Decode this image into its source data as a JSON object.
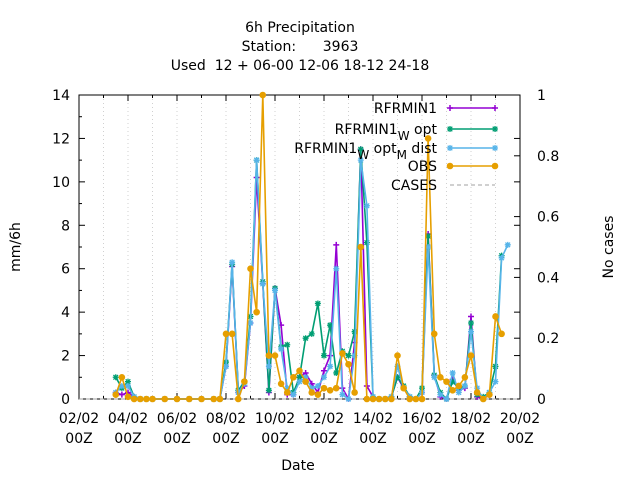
{
  "chart_data": {
    "type": "line",
    "title_lines": [
      "6h Precipitation",
      "Station:      3963",
      "Used  12 + 06-00 12-06 18-12 24-18"
    ],
    "xlabel": "Date",
    "ylabel": "mm/6h",
    "y2label": "No cases",
    "x_range": [
      "2001-02-02T00:00",
      "2001-02-20T00:00"
    ],
    "ylim": [
      0,
      14
    ],
    "y2lim": [
      0,
      1
    ],
    "x_ticks": [
      {
        "l1": "02/02",
        "l2": "00Z"
      },
      {
        "l1": "04/02",
        "l2": "00Z"
      },
      {
        "l1": "06/02",
        "l2": "00Z"
      },
      {
        "l1": "08/02",
        "l2": "00Z"
      },
      {
        "l1": "10/02",
        "l2": "00Z"
      },
      {
        "l1": "12/02",
        "l2": "00Z"
      },
      {
        "l1": "14/02",
        "l2": "00Z"
      },
      {
        "l1": "16/02",
        "l2": "00Z"
      },
      {
        "l1": "18/02",
        "l2": "00Z"
      },
      {
        "l1": "20/02",
        "l2": "00Z"
      }
    ],
    "y_ticks": [
      "0",
      "2",
      "4",
      "6",
      "8",
      "10",
      "12",
      "14"
    ],
    "y2_ticks": [
      "0",
      "0.2",
      "0.4",
      "0.6",
      "0.8",
      "1"
    ],
    "legend_position": "top-right",
    "legend": [
      {
        "base": "RFRMIN1",
        "sub": "",
        "after": "",
        "sub2": "",
        "after2": ""
      },
      {
        "base": "RFRMIN1",
        "sub": "W",
        "after": " opt",
        "sub2": "",
        "after2": ""
      },
      {
        "base": "RFRMIN1",
        "sub": "W",
        "after": " opt",
        "sub2": "M",
        "after2": " dist"
      },
      {
        "base": "OBS",
        "sub": "",
        "after": "",
        "sub2": "",
        "after2": ""
      },
      {
        "base": "CASES",
        "sub": "",
        "after": "",
        "sub2": "",
        "after2": ""
      }
    ],
    "series": [
      {
        "color": "#9400d3",
        "marker": "plus",
        "x": [
          "2001-02-03T12:00",
          "2001-02-03T18:00",
          "2001-02-04T00:00",
          "2001-02-04T06:00",
          "2001-02-04T12:00",
          "2001-02-04T18:00",
          "2001-02-05T00:00",
          "2001-02-05T12:00",
          "2001-02-06T00:00",
          "2001-02-06T12:00",
          "2001-02-07T00:00",
          "2001-02-07T12:00",
          "2001-02-07T18:00",
          "2001-02-08T00:00",
          "2001-02-08T06:00",
          "2001-02-08T12:00",
          "2001-02-08T18:00",
          "2001-02-09T00:00",
          "2001-02-09T06:00",
          "2001-02-09T12:00",
          "2001-02-09T18:00",
          "2001-02-10T00:00",
          "2001-02-10T06:00",
          "2001-02-10T12:00",
          "2001-02-10T18:00",
          "2001-02-11T00:00",
          "2001-02-11T06:00",
          "2001-02-11T12:00",
          "2001-02-11T18:00",
          "2001-02-12T00:00",
          "2001-02-12T06:00",
          "2001-02-12T12:00",
          "2001-02-12T18:00",
          "2001-02-13T00:00",
          "2001-02-13T06:00",
          "2001-02-13T12:00",
          "2001-02-13T18:00",
          "2001-02-14T00:00",
          "2001-02-14T06:00",
          "2001-02-14T12:00",
          "2001-02-14T18:00",
          "2001-02-15T00:00",
          "2001-02-15T06:00",
          "2001-02-15T12:00",
          "2001-02-15T18:00",
          "2001-02-16T00:00",
          "2001-02-16T06:00",
          "2001-02-16T12:00",
          "2001-02-16T18:00",
          "2001-02-17T00:00",
          "2001-02-17T06:00",
          "2001-02-17T12:00",
          "2001-02-17T18:00",
          "2001-02-18T00:00",
          "2001-02-18T06:00",
          "2001-02-18T12:00",
          "2001-02-18T18:00"
        ],
        "y": [
          0.3,
          0.2,
          0.3,
          0.1,
          0,
          0,
          0,
          0,
          0,
          0,
          0,
          0,
          0,
          1.5,
          6.1,
          0.3,
          0.6,
          3.5,
          10.2,
          5.3,
          0.3,
          5.1,
          3.4,
          0.2,
          0.2,
          1.0,
          1.2,
          0.7,
          0.3,
          1.3,
          2.0,
          7.1,
          0.5,
          0,
          2.6,
          11.5,
          0.6,
          0.1,
          0,
          0,
          0.1,
          1.0,
          0.5,
          0.1,
          0,
          0.3,
          7.6,
          1.1,
          0.1,
          0,
          0.9,
          0.4,
          0.5,
          3.8,
          0.1,
          0,
          0.2
        ]
      },
      {
        "color": "#009e73",
        "marker": "star",
        "x": [
          "2001-02-03T12:00",
          "2001-02-03T18:00",
          "2001-02-04T00:00",
          "2001-02-04T06:00",
          "2001-02-04T12:00",
          "2001-02-04T18:00",
          "2001-02-05T00:00",
          "2001-02-05T12:00",
          "2001-02-06T00:00",
          "2001-02-06T12:00",
          "2001-02-07T00:00",
          "2001-02-07T12:00",
          "2001-02-07T18:00",
          "2001-02-08T00:00",
          "2001-02-08T06:00",
          "2001-02-08T12:00",
          "2001-02-08T18:00",
          "2001-02-09T00:00",
          "2001-02-09T06:00",
          "2001-02-09T12:00",
          "2001-02-09T18:00",
          "2001-02-10T00:00",
          "2001-02-10T06:00",
          "2001-02-10T12:00",
          "2001-02-10T18:00",
          "2001-02-11T00:00",
          "2001-02-11T06:00",
          "2001-02-11T12:00",
          "2001-02-11T18:00",
          "2001-02-12T00:00",
          "2001-02-12T06:00",
          "2001-02-12T12:00",
          "2001-02-12T18:00",
          "2001-02-13T00:00",
          "2001-02-13T06:00",
          "2001-02-13T12:00",
          "2001-02-13T18:00",
          "2001-02-14T00:00",
          "2001-02-14T06:00",
          "2001-02-14T12:00",
          "2001-02-14T18:00",
          "2001-02-15T00:00",
          "2001-02-15T06:00",
          "2001-02-15T12:00",
          "2001-02-15T18:00",
          "2001-02-16T00:00",
          "2001-02-16T06:00",
          "2001-02-16T12:00",
          "2001-02-16T18:00",
          "2001-02-17T00:00",
          "2001-02-17T06:00",
          "2001-02-17T12:00",
          "2001-02-17T18:00",
          "2001-02-18T00:00",
          "2001-02-18T06:00",
          "2001-02-18T12:00",
          "2001-02-18T18:00",
          "2001-02-19T00:00",
          "2001-02-19T06:00"
        ],
        "y": [
          1.0,
          0.5,
          0.8,
          0.1,
          0,
          0,
          0,
          0,
          0,
          0,
          0,
          0,
          0,
          1.7,
          6.2,
          0.4,
          0.8,
          3.8,
          11.0,
          5.4,
          0.4,
          5.1,
          2.4,
          2.5,
          0.3,
          1.0,
          2.8,
          3.0,
          4.4,
          2.0,
          3.4,
          1.2,
          2.2,
          2.0,
          3.1,
          11.5,
          7.2,
          0.1,
          0,
          0,
          0.1,
          1.0,
          0.6,
          0.1,
          0,
          0.5,
          7.5,
          1.1,
          0.3,
          0,
          0.8,
          0.5,
          0.6,
          3.5,
          0.2,
          0.1,
          0.3,
          1.5,
          6.6
        ]
      },
      {
        "color": "#56b4e9",
        "marker": "star",
        "x": [
          "2001-02-03T12:00",
          "2001-02-03T18:00",
          "2001-02-04T00:00",
          "2001-02-04T06:00",
          "2001-02-04T12:00",
          "2001-02-04T18:00",
          "2001-02-05T00:00",
          "2001-02-05T12:00",
          "2001-02-06T00:00",
          "2001-02-06T12:00",
          "2001-02-07T00:00",
          "2001-02-07T12:00",
          "2001-02-07T18:00",
          "2001-02-08T00:00",
          "2001-02-08T06:00",
          "2001-02-08T12:00",
          "2001-02-08T18:00",
          "2001-02-09T00:00",
          "2001-02-09T06:00",
          "2001-02-09T12:00",
          "2001-02-09T18:00",
          "2001-02-10T00:00",
          "2001-02-10T06:00",
          "2001-02-10T12:00",
          "2001-02-10T18:00",
          "2001-02-11T00:00",
          "2001-02-11T06:00",
          "2001-02-11T12:00",
          "2001-02-11T18:00",
          "2001-02-12T00:00",
          "2001-02-12T06:00",
          "2001-02-12T12:00",
          "2001-02-12T18:00",
          "2001-02-13T00:00",
          "2001-02-13T06:00",
          "2001-02-13T12:00",
          "2001-02-13T18:00",
          "2001-02-14T00:00",
          "2001-02-14T06:00",
          "2001-02-14T12:00",
          "2001-02-14T18:00",
          "2001-02-15T00:00",
          "2001-02-15T06:00",
          "2001-02-15T12:00",
          "2001-02-15T18:00",
          "2001-02-16T00:00",
          "2001-02-16T06:00",
          "2001-02-16T12:00",
          "2001-02-16T18:00",
          "2001-02-17T00:00",
          "2001-02-17T06:00",
          "2001-02-17T12:00",
          "2001-02-17T18:00",
          "2001-02-18T00:00",
          "2001-02-18T06:00",
          "2001-02-18T12:00",
          "2001-02-18T18:00",
          "2001-02-19T00:00",
          "2001-02-19T06:00",
          "2001-02-19T12:00"
        ],
        "y": [
          0.3,
          0.6,
          0.6,
          0.1,
          0,
          0,
          0,
          0,
          0,
          0,
          0,
          0,
          0,
          1.5,
          6.3,
          0.3,
          0.7,
          3.5,
          11.0,
          5.3,
          1.5,
          5.0,
          2.3,
          0.5,
          0.2,
          0.8,
          1.0,
          0.5,
          0.6,
          1.0,
          1.5,
          6.0,
          0.2,
          0,
          2.0,
          11.0,
          8.9,
          0.1,
          0,
          0,
          0.1,
          1.5,
          0.5,
          0.1,
          0,
          0.3,
          7.0,
          1.0,
          0.2,
          0,
          1.2,
          0.3,
          0.6,
          3.1,
          0.5,
          0,
          0.3,
          0.8,
          6.5,
          7.1
        ]
      },
      {
        "color": "#e69f00",
        "marker": "circle",
        "x": [
          "2001-02-03T12:00",
          "2001-02-03T18:00",
          "2001-02-04T00:00",
          "2001-02-04T06:00",
          "2001-02-04T12:00",
          "2001-02-04T18:00",
          "2001-02-05T00:00",
          "2001-02-05T12:00",
          "2001-02-06T00:00",
          "2001-02-06T12:00",
          "2001-02-07T00:00",
          "2001-02-07T12:00",
          "2001-02-07T18:00",
          "2001-02-08T00:00",
          "2001-02-08T06:00",
          "2001-02-08T12:00",
          "2001-02-08T18:00",
          "2001-02-09T00:00",
          "2001-02-09T06:00",
          "2001-02-09T12:00",
          "2001-02-09T18:00",
          "2001-02-10T00:00",
          "2001-02-10T06:00",
          "2001-02-10T12:00",
          "2001-02-10T18:00",
          "2001-02-11T00:00",
          "2001-02-11T06:00",
          "2001-02-11T12:00",
          "2001-02-11T18:00",
          "2001-02-12T00:00",
          "2001-02-12T06:00",
          "2001-02-12T12:00",
          "2001-02-12T18:00",
          "2001-02-13T00:00",
          "2001-02-13T06:00",
          "2001-02-13T12:00",
          "2001-02-13T18:00",
          "2001-02-14T00:00",
          "2001-02-14T06:00",
          "2001-02-14T12:00",
          "2001-02-14T18:00",
          "2001-02-15T00:00",
          "2001-02-15T06:00",
          "2001-02-15T12:00",
          "2001-02-15T18:00",
          "2001-02-16T00:00",
          "2001-02-16T06:00",
          "2001-02-16T12:00",
          "2001-02-16T18:00",
          "2001-02-17T00:00",
          "2001-02-17T06:00",
          "2001-02-17T12:00",
          "2001-02-17T18:00",
          "2001-02-18T00:00",
          "2001-02-18T06:00",
          "2001-02-18T12:00",
          "2001-02-18T18:00",
          "2001-02-19T00:00",
          "2001-02-19T06:00"
        ],
        "y": [
          0.2,
          1.0,
          0.1,
          0,
          0,
          0,
          0,
          0,
          0,
          0,
          0,
          0,
          0,
          3.0,
          3.0,
          0,
          0.8,
          6.0,
          4.0,
          14.0,
          2.0,
          2.0,
          0.7,
          0.3,
          1.0,
          1.3,
          0.8,
          0.3,
          0.2,
          0.5,
          0.4,
          0.5,
          2.1,
          1.6,
          0.3,
          7.0,
          0,
          0,
          0,
          0,
          0,
          2.0,
          0.5,
          0,
          0,
          0,
          12.0,
          3.0,
          1.0,
          0.8,
          0.4,
          0.6,
          1.0,
          2.0,
          0.3,
          0,
          0.2,
          3.8,
          3.0
        ]
      }
    ],
    "cases": {
      "color": "#a0a0a0",
      "y2": 0
    }
  }
}
